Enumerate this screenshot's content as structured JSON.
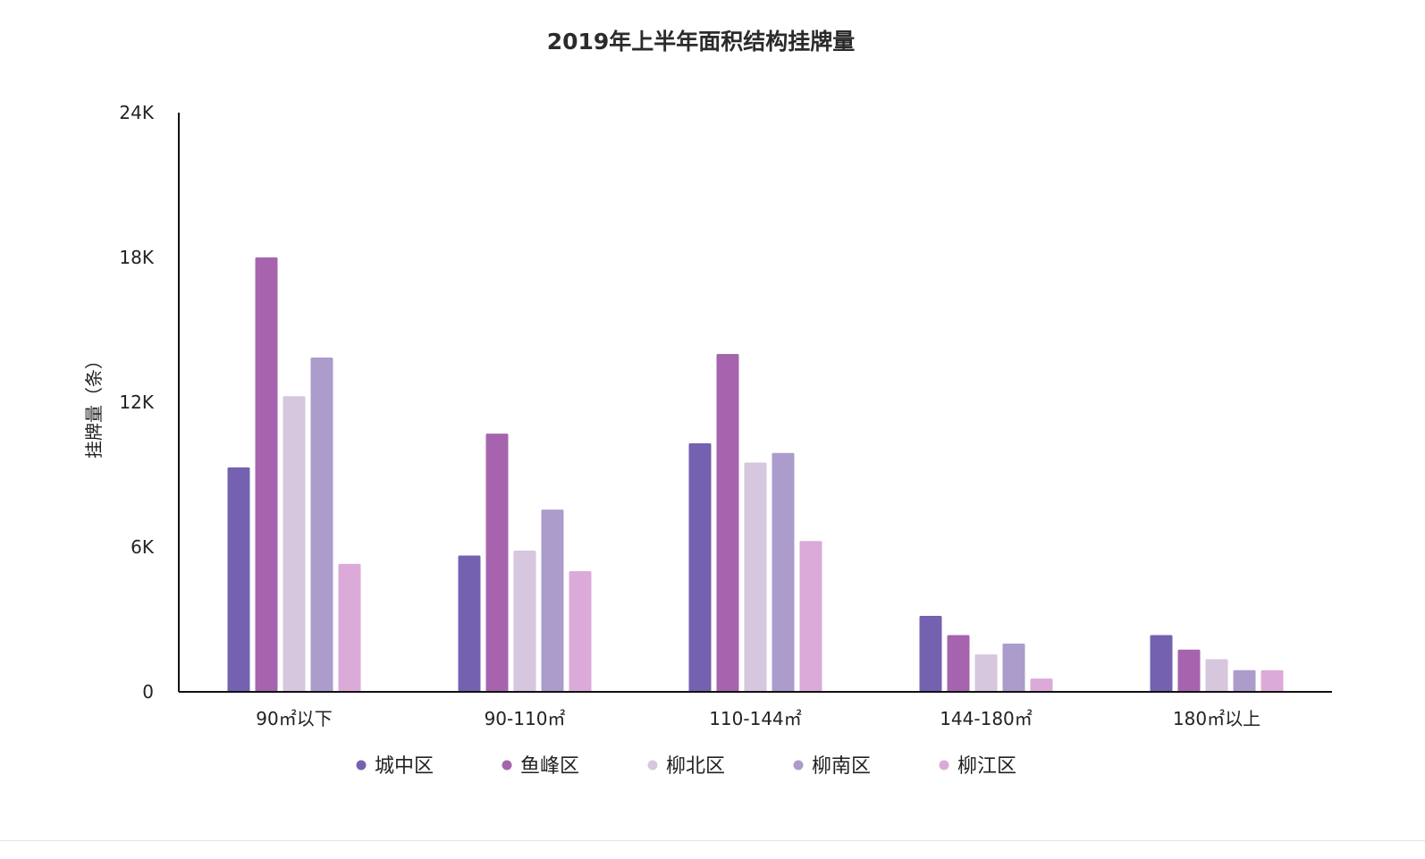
{
  "chart_data": {
    "type": "bar",
    "title": "2019年上半年面积结构挂牌量",
    "ylabel": "挂牌量（条）",
    "xlabel": "",
    "ylim": [
      0,
      24000
    ],
    "yticks": [
      {
        "value": 0,
        "label": "0"
      },
      {
        "value": 6000,
        "label": "6K"
      },
      {
        "value": 12000,
        "label": "12K"
      },
      {
        "value": 18000,
        "label": "18K"
      },
      {
        "value": 24000,
        "label": "24K"
      }
    ],
    "categories": [
      "90㎡以下",
      "90-110㎡",
      "110-144㎡",
      "144-180㎡",
      "180㎡以上"
    ],
    "grid": false,
    "legend_position": "bottom",
    "series": [
      {
        "name": "城中区",
        "color": "#7461b0",
        "values": [
          9300,
          5650,
          10300,
          3150,
          2350
        ]
      },
      {
        "name": "鱼峰区",
        "color": "#a664ae",
        "values": [
          18000,
          10700,
          14000,
          2350,
          1750
        ]
      },
      {
        "name": "柳北区",
        "color": "#d6c6de",
        "values": [
          12250,
          5850,
          9500,
          1550,
          1350
        ]
      },
      {
        "name": "柳南区",
        "color": "#ab9ccb",
        "values": [
          13850,
          7550,
          9900,
          2000,
          900
        ]
      },
      {
        "name": "柳江区",
        "color": "#dcaad8",
        "values": [
          5300,
          5000,
          6250,
          550,
          900
        ]
      }
    ]
  }
}
